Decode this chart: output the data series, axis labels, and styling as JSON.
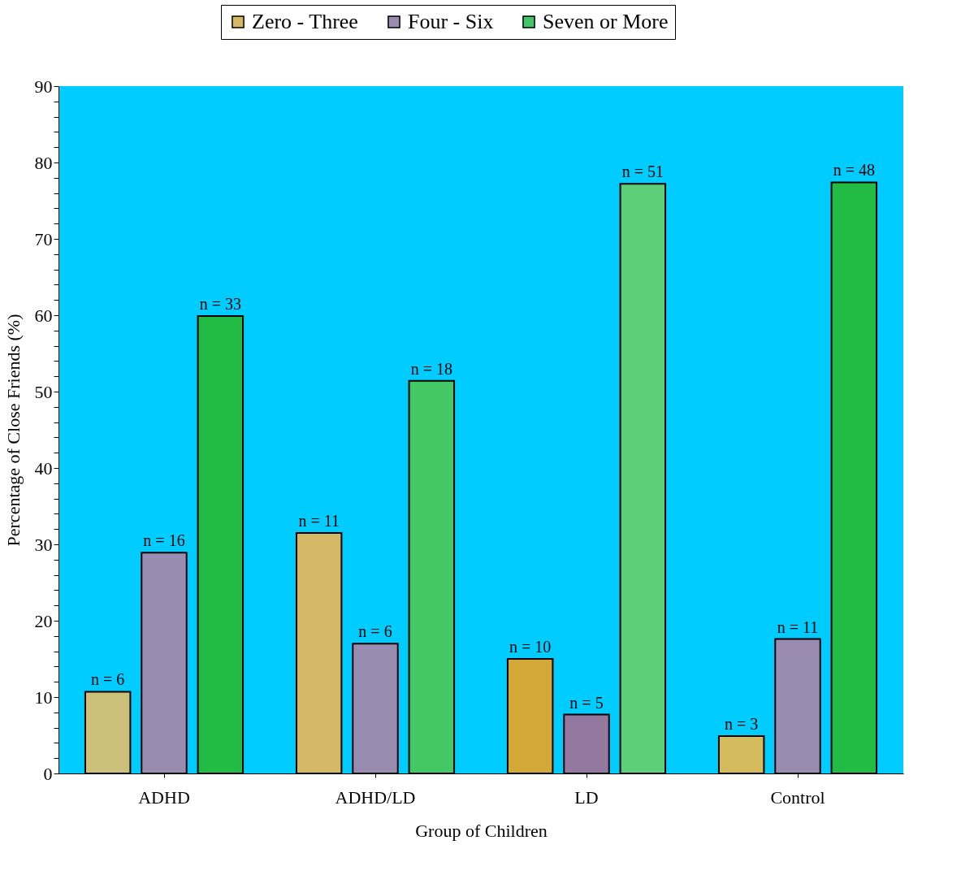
{
  "chart_data": {
    "type": "bar",
    "xlabel": "Group of Children",
    "ylabel": "Percentage of Close Friends (%)",
    "categories": [
      "ADHD",
      "ADHD/LD",
      "LD",
      "Control"
    ],
    "series": [
      {
        "name": "Zero - Three",
        "color": "#d4b866",
        "colors": [
          "#ccc07a",
          "#d4b866",
          "#d4a838",
          "#d4bb5e"
        ],
        "values": [
          10.7,
          31.5,
          15.0,
          4.9
        ]
      },
      {
        "name": "Four - Six",
        "color": "#9a8cb0",
        "colors": [
          "#9a8cb0",
          "#9a8cb0",
          "#9478a0",
          "#9a8cb0"
        ],
        "values": [
          28.9,
          17.0,
          7.7,
          17.6
        ]
      },
      {
        "name": "Seven or More",
        "color": "#44c466",
        "colors": [
          "#22bb44",
          "#44c866",
          "#5ccf78",
          "#22bb44"
        ],
        "values": [
          59.9,
          51.4,
          77.2,
          77.4
        ]
      }
    ],
    "annotations": [
      "n = 6",
      "n = 11",
      "n = 10",
      "n = 3",
      "n = 16",
      "n = 6",
      "n = 5",
      "n = 11",
      "n = 33",
      "n = 18",
      "n = 51",
      "n = 48"
    ],
    "ylim": [
      0,
      90
    ],
    "yticks": [
      0,
      {
        "value": 2,
        "label": null
      },
      {
        "value": 4,
        "label": null
      },
      {
        "value": 6,
        "label": null
      },
      {
        "value": 8,
        "label": null
      },
      10,
      {
        "value": 12,
        "label": null
      },
      {
        "value": 14,
        "label": null
      },
      {
        "value": 16,
        "label": null
      },
      {
        "value": 18,
        "label": null
      },
      20,
      {
        "value": 22,
        "label": null
      },
      {
        "value": 24,
        "label": null
      },
      {
        "value": 26,
        "label": null
      },
      {
        "value": 28,
        "label": null
      },
      30,
      {
        "value": 32,
        "label": null
      },
      {
        "value": 34,
        "label": null
      },
      {
        "value": 36,
        "label": null
      },
      {
        "value": 38,
        "label": null
      },
      40,
      {
        "value": 42,
        "label": null
      },
      {
        "value": 44,
        "label": null
      },
      {
        "value": 46,
        "label": null
      },
      {
        "value": 48,
        "label": null
      },
      50,
      {
        "value": 52,
        "label": null
      },
      {
        "value": 54,
        "label": null
      },
      {
        "value": 56,
        "label": null
      },
      {
        "value": 58,
        "label": null
      },
      60,
      {
        "value": 62,
        "label": null
      },
      {
        "value": 64,
        "label": null
      },
      {
        "value": 66,
        "label": null
      },
      {
        "value": 68,
        "label": null
      },
      70,
      {
        "value": 72,
        "label": null
      },
      {
        "value": 74,
        "label": null
      },
      {
        "value": 76,
        "label": null
      },
      {
        "value": 78,
        "label": null
      },
      80,
      {
        "value": 82,
        "label": null
      },
      {
        "value": 84,
        "label": null
      },
      {
        "value": 86,
        "label": null
      },
      {
        "value": 88,
        "label": null
      },
      90
    ],
    "grid": false,
    "legend": "top"
  }
}
